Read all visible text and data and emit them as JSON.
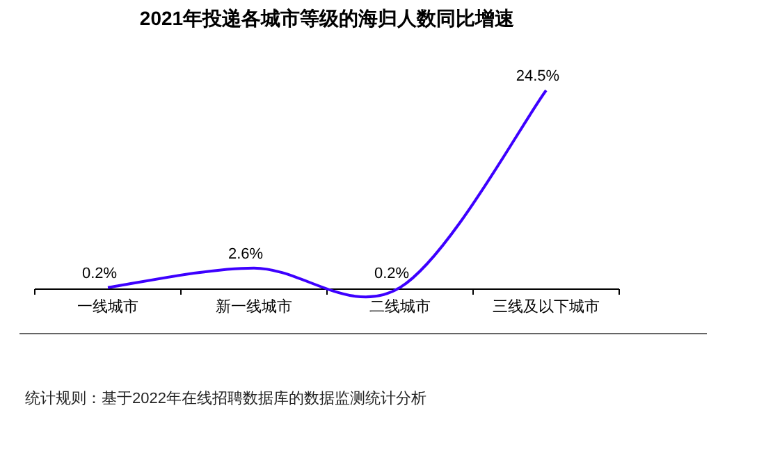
{
  "chart_data": {
    "type": "line",
    "title": "2021年投递各城市等级的海归人数同比增速",
    "categories": [
      "一线城市",
      "新一线城市",
      "二线城市",
      "三线及以下城市"
    ],
    "series": [
      {
        "color": "#3d00ff",
        "values": [
          0.2,
          2.6,
          0.2,
          24.5
        ],
        "value_labels": [
          "0.2%",
          "2.6%",
          "0.2%",
          "24.5%"
        ]
      }
    ],
    "annotations": [
      "统计规则：基于2022年在线招聘数据库的数据监测统计分析"
    ]
  }
}
